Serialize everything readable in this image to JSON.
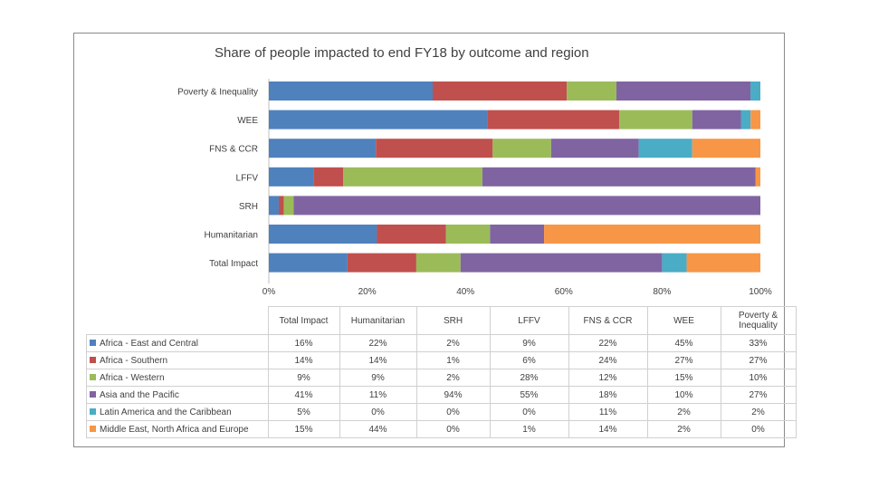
{
  "chart_data": {
    "type": "bar",
    "orientation": "horizontal",
    "stacked": "percent",
    "title": "Share of people impacted to end FY18 by outcome and region",
    "categories_display": [
      "Poverty & Inequality",
      "WEE",
      "FNS & CCR",
      "LFFV",
      "SRH",
      "Humanitarian",
      "Total Impact"
    ],
    "table_columns": [
      "Total Impact",
      "Humanitarian",
      "SRH",
      "LFFV",
      "FNS & CCR",
      "WEE",
      "Poverty & Inequality"
    ],
    "x_ticks": [
      "0%",
      "20%",
      "40%",
      "60%",
      "80%",
      "100%"
    ],
    "xlim": [
      0,
      100
    ],
    "grid": false,
    "legend": "data-table-left",
    "series": [
      {
        "name": "Africa - East and Central",
        "color": "#4F81BD",
        "values": [
          16,
          22,
          2,
          9,
          22,
          45,
          33
        ],
        "labels": [
          "16%",
          "22%",
          "2%",
          "9%",
          "22%",
          "45%",
          "33%"
        ]
      },
      {
        "name": "Africa - Southern",
        "color": "#C0504D",
        "values": [
          14,
          14,
          1,
          6,
          24,
          27,
          27
        ],
        "labels": [
          "14%",
          "14%",
          "1%",
          "6%",
          "24%",
          "27%",
          "27%"
        ]
      },
      {
        "name": "Africa - Western",
        "color": "#9BBB59",
        "values": [
          9,
          9,
          2,
          28,
          12,
          15,
          10
        ],
        "labels": [
          "9%",
          "9%",
          "2%",
          "28%",
          "12%",
          "15%",
          "10%"
        ]
      },
      {
        "name": "Asia and the Pacific",
        "color": "#8064A2",
        "values": [
          41,
          11,
          94,
          55,
          18,
          10,
          27
        ],
        "labels": [
          "41%",
          "11%",
          "94%",
          "55%",
          "18%",
          "10%",
          "27%"
        ]
      },
      {
        "name": "Latin America and the Caribbean",
        "color": "#4BACC6",
        "values": [
          5,
          0,
          0,
          0,
          11,
          2,
          2
        ],
        "labels": [
          "5%",
          "0%",
          "0%",
          "0%",
          "11%",
          "2%",
          "2%"
        ]
      },
      {
        "name": "Middle East, North Africa and Europe",
        "color": "#F79646",
        "values": [
          15,
          44,
          0,
          1,
          14,
          2,
          0
        ],
        "labels": [
          "15%",
          "44%",
          "0%",
          "1%",
          "14%",
          "2%",
          "0%"
        ]
      }
    ]
  }
}
